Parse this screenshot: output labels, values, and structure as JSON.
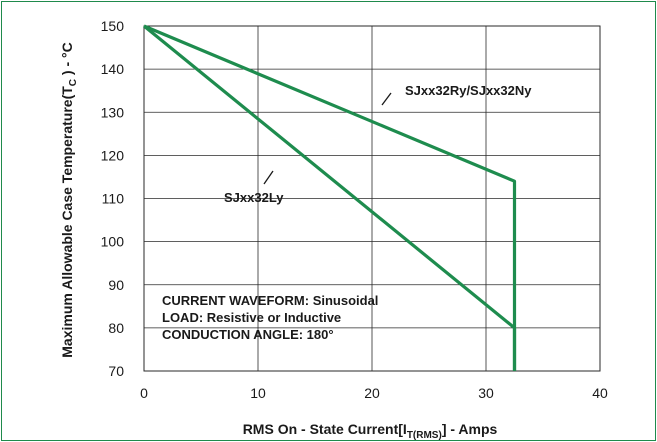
{
  "chart_data": {
    "type": "line",
    "xlim": [
      0,
      40
    ],
    "ylim": [
      70,
      150
    ],
    "x_ticks": [
      0,
      10,
      20,
      30,
      40
    ],
    "y_ticks": [
      70,
      80,
      90,
      100,
      110,
      120,
      130,
      140,
      150
    ],
    "x_tick_labels": [
      "0",
      "10",
      "20",
      "30",
      "40"
    ],
    "y_tick_labels": [
      "70",
      "80",
      "90",
      "100",
      "110",
      "120",
      "130",
      "140",
      "150"
    ],
    "grid": true,
    "xlabel": {
      "main": "RMS On - State Current[I",
      "sub": "T(RMS)",
      "tail": "] - Amps"
    },
    "ylabel": {
      "main": "Maximum Allowable  Case Temperature(T",
      "sub": "C",
      "tail": " ) - °C"
    },
    "series": [
      {
        "name": "SJxx32Ry/SJxx32Ny",
        "x": [
          0,
          32.5,
          32.5
        ],
        "y": [
          150,
          114,
          70
        ],
        "color": "#1e8c4e"
      },
      {
        "name": "SJxx32Ly",
        "x": [
          0,
          32.5,
          32.5
        ],
        "y": [
          150,
          80,
          70
        ],
        "color": "#1e8c4e"
      }
    ],
    "annotations": [
      "CURRENT WAVEFORM: Sinusoidal",
      "LOAD: Resistive or Inductive",
      "CONDUCTION ANGLE: 180°"
    ]
  }
}
